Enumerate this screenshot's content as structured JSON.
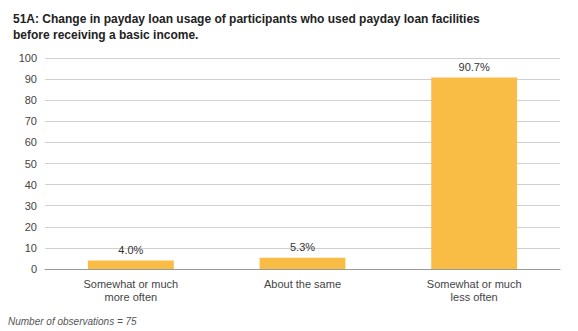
{
  "chart_data": {
    "type": "bar",
    "title": "51A: Change in payday loan usage of participants who used payday loan facilities\nbefore receiving a basic income.",
    "annotation": "Number of observations = 75",
    "categories": [
      "Somewhat or much\nmore often",
      "About the same",
      "Somewhat or much\nless often"
    ],
    "values": [
      4.0,
      5.3,
      90.7
    ],
    "value_labels": [
      "4.0%",
      "5.3%",
      "90.7%"
    ],
    "data_labels": true,
    "color": "#F9BC45",
    "ylim": [
      0,
      100
    ],
    "yticks": [
      0,
      10,
      20,
      30,
      40,
      50,
      60,
      70,
      80,
      90,
      100
    ],
    "grid": true
  }
}
